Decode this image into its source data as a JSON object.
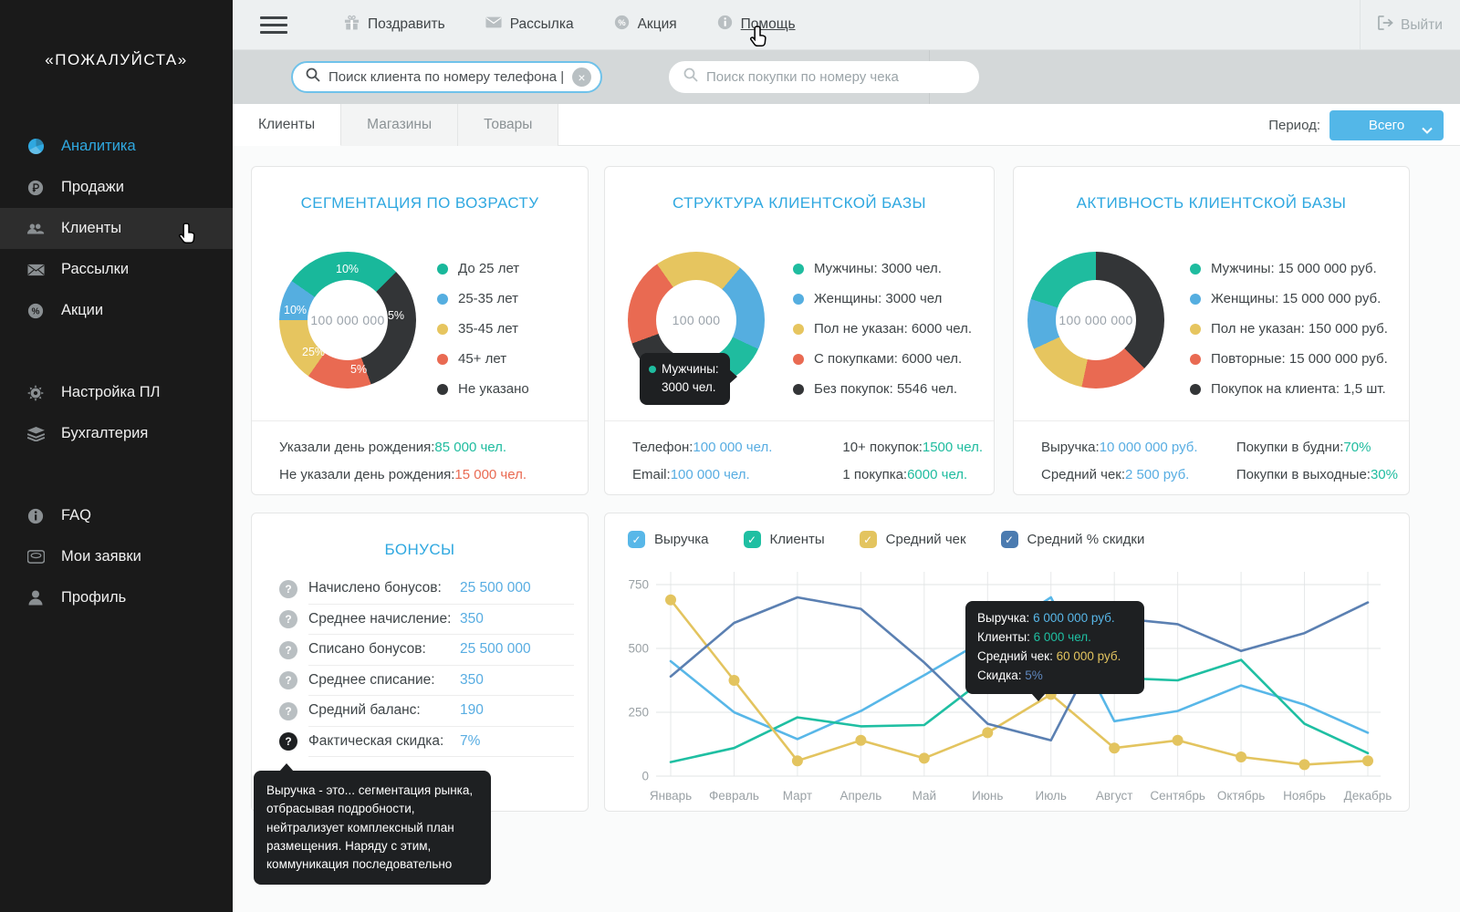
{
  "colors": {
    "accent": "#2fa8e0",
    "value_blue": "#58ade2",
    "teal": "#1fbc9f",
    "blue": "#55aee0",
    "yellow": "#e6c55f",
    "red": "#e96a52",
    "dark": "#333537",
    "steel": "#5b80b2"
  },
  "sidebar": {
    "logo": "«ПОЖАЛУЙСТА»",
    "items": [
      {
        "label": "Аналитика"
      },
      {
        "label": "Продажи"
      },
      {
        "label": "Клиенты"
      },
      {
        "label": "Рассылки"
      },
      {
        "label": "Акции"
      },
      {
        "label": "Настройка ПЛ"
      },
      {
        "label": "Бухгалтерия"
      },
      {
        "label": "FAQ"
      },
      {
        "label": "Мои заявки"
      },
      {
        "label": "Профиль"
      }
    ]
  },
  "topbar": {
    "actions": [
      {
        "label": "Поздравить"
      },
      {
        "label": "Рассылка"
      },
      {
        "label": "Акция"
      },
      {
        "label": "Помощь"
      }
    ],
    "logout": "Выйти"
  },
  "search": {
    "client_query": "Поиск клиента по номеру телефона |",
    "receipt_placeholder": "Поиск покупки по номеру чека"
  },
  "tabs": [
    {
      "label": "Клиенты"
    },
    {
      "label": "Магазины"
    },
    {
      "label": "Товары"
    }
  ],
  "period": {
    "label": "Период:",
    "value": "Всего"
  },
  "age_card": {
    "title": "СЕГМЕНТАЦИЯ ПО ВОЗРАСТУ",
    "center": "100 000 000",
    "donut": {
      "start": -55,
      "arcs": [
        {
          "color": "#19b89b",
          "deg": 100,
          "pct": "10%"
        },
        {
          "color": "#333537",
          "deg": 115,
          "pct": "55%"
        },
        {
          "color": "#e96a52",
          "deg": 55,
          "pct": "5%"
        },
        {
          "color": "#e6c55f",
          "deg": 55,
          "pct": "25%"
        },
        {
          "color": "#55aee0",
          "deg": 35,
          "pct": "10%"
        }
      ]
    },
    "legend": [
      {
        "color": "#19b89b",
        "label": "До 25 лет"
      },
      {
        "color": "#55aee0",
        "label": "25-35 лет"
      },
      {
        "color": "#e6c55f",
        "label": "35-45 лет"
      },
      {
        "color": "#e96a52",
        "label": "45+ лет"
      },
      {
        "color": "#333537",
        "label": "Не указано"
      }
    ],
    "stats": [
      {
        "label": "Указали день рождения: ",
        "value": "85 000 чел.",
        "color": "#1fbc9f"
      },
      {
        "label": "Не указали день рождения: ",
        "value": "15 000 чел.",
        "color": "#e96a52"
      }
    ]
  },
  "structure_card": {
    "title": "СТРУКТУРА КЛИЕНТСКОЙ БАЗЫ",
    "center": "100 000",
    "donut": {
      "start": -35,
      "arcs": [
        {
          "color": "#e6c55f",
          "deg": 75
        },
        {
          "color": "#55aee0",
          "deg": 75
        },
        {
          "color": "#1fbc9f",
          "deg": 85
        },
        {
          "color": "#333537",
          "deg": 50
        },
        {
          "color": "#e96a52",
          "deg": 75
        }
      ]
    },
    "legend": [
      {
        "color": "#1fbc9f",
        "label": "Мужчины: 3000 чел."
      },
      {
        "color": "#55aee0",
        "label": "Женщины: 3000 чел"
      },
      {
        "color": "#e6c55f",
        "label": "Пол не указан: 6000 чел."
      },
      {
        "color": "#e96a52",
        "label": "С покупками: 6000 чел."
      },
      {
        "color": "#333537",
        "label": "Без покупок: 5546 чел."
      }
    ],
    "tooltip": {
      "label": "Мужчины:",
      "value": "3000 чел.",
      "dot": "#1fbc9f"
    },
    "stats_left": [
      {
        "label": "Телефон: ",
        "value": "100 000 чел.",
        "color": "#58ade2"
      },
      {
        "label": "Email: ",
        "value": "100 000 чел.",
        "color": "#58ade2"
      }
    ],
    "stats_right": [
      {
        "label": "10+ покупок: ",
        "value": "1500 чел.",
        "color": "#1fbc9f"
      },
      {
        "label": "1 покупка: ",
        "value": "6000 чел.",
        "color": "#1fbc9f"
      }
    ]
  },
  "activity_card": {
    "title": "АКТИВНОСТЬ КЛИЕНТСКОЙ БАЗЫ",
    "center": "100 000 000",
    "donut": {
      "start": 0,
      "arcs": [
        {
          "color": "#333537",
          "deg": 135
        },
        {
          "color": "#e96a52",
          "deg": 57
        },
        {
          "color": "#e6c55f",
          "deg": 53
        },
        {
          "color": "#55aee0",
          "deg": 43
        },
        {
          "color": "#1fbc9f",
          "deg": 72
        }
      ]
    },
    "legend": [
      {
        "color": "#1fbc9f",
        "label": "Мужчины: 15 000 000 руб."
      },
      {
        "color": "#55aee0",
        "label": "Женщины: 15 000 000 руб."
      },
      {
        "color": "#e6c55f",
        "label": "Пол не указан: 150 000 руб."
      },
      {
        "color": "#e96a52",
        "label": "Повторные: 15 000 000 руб."
      },
      {
        "color": "#333537",
        "label": "Покупок на клиента: 1,5 шт."
      }
    ],
    "stats_left": [
      {
        "label": "Выручка: ",
        "value": "10 000 000 руб.",
        "color": "#58ade2"
      },
      {
        "label": "Средний чек: ",
        "value": "2 500 руб.",
        "color": "#58ade2"
      }
    ],
    "stats_right": [
      {
        "label": "Покупки в будни: ",
        "value": "70%",
        "color": "#1fbc9f"
      },
      {
        "label": "Покупки в выходные: ",
        "value": "30%",
        "color": "#1fbc9f"
      }
    ]
  },
  "bonus_card": {
    "title": "БОНУСЫ",
    "rows": [
      {
        "label": "Начислено бонусов:",
        "value": "25 500 000"
      },
      {
        "label": "Среднее начисление:",
        "value": "350"
      },
      {
        "label": "Списано бонусов:",
        "value": "25 500 000"
      },
      {
        "label": "Среднее списание:",
        "value": "350"
      },
      {
        "label": "Средний баланс:",
        "value": "190"
      },
      {
        "label": "Фактическая скидка:",
        "value": "7%"
      }
    ],
    "tooltip": "Выручка - это... сегментация рынка, отбрасывая подробности, нейтрализует комплексный план размещения. Наряду с этим, коммуникация последовательно"
  },
  "trends_card": {
    "checkboxes": [
      {
        "label": "Выручка",
        "color": "#58b7e8",
        "check": "✓"
      },
      {
        "label": "Клиенты",
        "color": "#1fbfa2",
        "check": "✓"
      },
      {
        "label": "Средний чек",
        "color": "#e3c45f",
        "check": "✓"
      },
      {
        "label": "Средний % скидки",
        "color": "#4b7bb0",
        "check": "✓"
      }
    ],
    "tooltip": [
      {
        "label": "Выручка: ",
        "value": "6 000 000 руб.",
        "color": "#58b7e8"
      },
      {
        "label": "Клиенты: ",
        "value": "6 000 чел.",
        "color": "#1fbfa2"
      },
      {
        "label": "Средний чек: ",
        "value": "60 000 руб.",
        "color": "#e3c45f"
      },
      {
        "label": "Скидка: ",
        "value": "5%",
        "color": "#5f87be"
      }
    ]
  },
  "chart_data": {
    "type": "line",
    "x": [
      "Январь",
      "Февраль",
      "Март",
      "Апрель",
      "Май",
      "Июнь",
      "Июль",
      "Август",
      "Сентябрь",
      "Октябрь",
      "Ноябрь",
      "Декабрь"
    ],
    "ylim": [
      0,
      750
    ],
    "yticks": [
      0,
      250,
      500,
      750
    ],
    "grid": true,
    "series": [
      {
        "name": "Выручка",
        "color": "#58b7e8",
        "values": [
          450,
          250,
          145,
          255,
          395,
          540,
          700,
          215,
          255,
          355,
          280,
          170
        ]
      },
      {
        "name": "Клиенты",
        "color": "#1fbfa2",
        "values": [
          55,
          110,
          230,
          195,
          200,
          390,
          430,
          385,
          375,
          455,
          205,
          90
        ]
      },
      {
        "name": "Средний чек",
        "color": "#e3c45f",
        "dots": true,
        "values": [
          690,
          375,
          60,
          140,
          70,
          170,
          320,
          110,
          140,
          75,
          45,
          60
        ]
      },
      {
        "name": "Средний % скидки",
        "color": "#5b80b2",
        "values": [
          390,
          600,
          700,
          655,
          445,
          205,
          140,
          620,
          595,
          490,
          560,
          680
        ]
      }
    ]
  }
}
